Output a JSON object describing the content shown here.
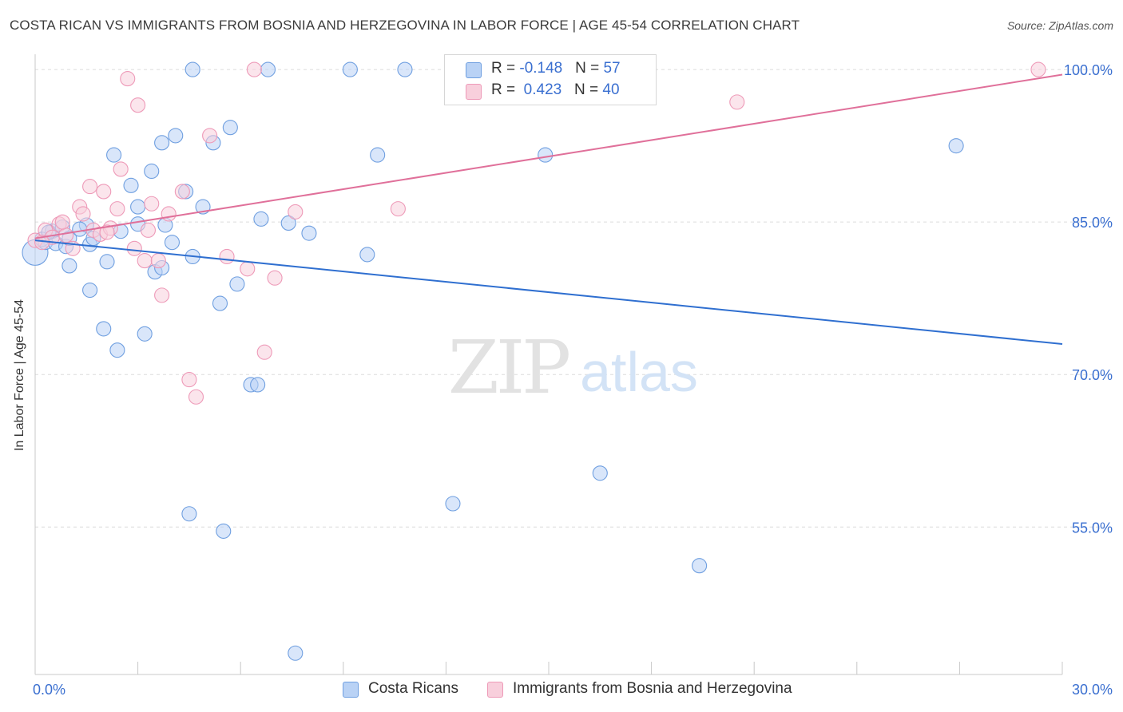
{
  "title": "COSTA RICAN VS IMMIGRANTS FROM BOSNIA AND HERZEGOVINA IN LABOR FORCE | AGE 45-54 CORRELATION CHART",
  "source": "Source: ZipAtlas.com",
  "watermark": {
    "zip": "ZIP",
    "atlas": "atlas"
  },
  "legend": {
    "rows": [
      {
        "r_label": "R = ",
        "r_value": "-0.148",
        "n_label": "N = ",
        "n_value": "57"
      },
      {
        "r_label": "R = ",
        "r_value": "0.423",
        "n_label": "N = ",
        "n_value": "40"
      }
    ]
  },
  "chart_data": {
    "type": "scatter",
    "title": "COSTA RICAN VS IMMIGRANTS FROM BOSNIA AND HERZEGOVINA IN LABOR FORCE | AGE 45-54 CORRELATION CHART",
    "xlabel": "",
    "ylabel": "In Labor Force | Age 45-54",
    "xlim": [
      0,
      30
    ],
    "ylim": [
      40.5,
      101.5
    ],
    "x_tick_labels": [
      {
        "value": 0,
        "label": "0.0%"
      },
      {
        "value": 30,
        "label": "30.0%"
      }
    ],
    "y_tick_labels": [
      {
        "value": 55,
        "label": "55.0%"
      },
      {
        "value": 70,
        "label": "70.0%"
      },
      {
        "value": 85,
        "label": "85.0%"
      },
      {
        "value": 100,
        "label": "100.0%"
      }
    ],
    "series": [
      {
        "name": "Costa Ricans",
        "color": "#6f9fe0",
        "fill": "#b9d2f5",
        "r": -0.148,
        "n": 57,
        "trend": {
          "x": [
            0,
            30
          ],
          "y": [
            83.2,
            73.0
          ]
        },
        "points": [
          [
            0.0,
            82.0,
            16
          ],
          [
            0.2,
            83.3,
            9
          ],
          [
            0.3,
            83.0,
            9
          ],
          [
            0.5,
            84.1,
            9
          ],
          [
            0.6,
            82.9,
            9
          ],
          [
            0.8,
            84.5,
            9
          ],
          [
            0.9,
            82.6,
            9
          ],
          [
            1.0,
            80.7,
            9
          ],
          [
            1.0,
            83.4,
            9
          ],
          [
            1.5,
            84.7,
            9
          ],
          [
            1.6,
            82.8,
            9
          ],
          [
            1.7,
            83.4,
            9
          ],
          [
            1.6,
            78.3,
            9
          ],
          [
            2.1,
            81.1,
            9
          ],
          [
            2.0,
            74.5,
            9
          ],
          [
            2.4,
            72.4,
            9
          ],
          [
            2.5,
            84.1,
            9
          ],
          [
            2.3,
            91.6,
            9
          ],
          [
            2.8,
            88.6,
            9
          ],
          [
            3.0,
            84.8,
            9
          ],
          [
            3.0,
            86.5,
            9
          ],
          [
            3.2,
            74.0,
            9
          ],
          [
            3.4,
            90.0,
            9
          ],
          [
            3.5,
            80.1,
            9
          ],
          [
            3.7,
            80.5,
            9
          ],
          [
            3.7,
            92.8,
            9
          ],
          [
            3.8,
            84.7,
            9
          ],
          [
            4.0,
            83.0,
            9
          ],
          [
            4.1,
            93.5,
            9
          ],
          [
            4.4,
            88.0,
            9
          ],
          [
            4.6,
            81.6,
            9
          ],
          [
            4.5,
            56.3,
            9
          ],
          [
            4.6,
            100.0,
            9
          ],
          [
            4.9,
            86.5,
            9
          ],
          [
            5.2,
            92.8,
            9
          ],
          [
            5.4,
            77.0,
            9
          ],
          [
            5.5,
            54.6,
            9
          ],
          [
            5.7,
            94.3,
            9
          ],
          [
            5.9,
            78.9,
            9
          ],
          [
            6.3,
            69.0,
            9
          ],
          [
            6.5,
            69.0,
            9
          ],
          [
            6.6,
            85.3,
            9
          ],
          [
            6.8,
            100.0,
            9
          ],
          [
            7.4,
            84.9,
            9
          ],
          [
            7.6,
            42.6,
            9
          ],
          [
            8.0,
            83.9,
            9
          ],
          [
            9.2,
            100.0,
            9
          ],
          [
            9.7,
            81.8,
            9
          ],
          [
            10.0,
            91.6,
            9
          ],
          [
            10.8,
            100.0,
            9
          ],
          [
            12.2,
            57.3,
            9
          ],
          [
            14.9,
            91.6,
            9
          ],
          [
            16.5,
            60.3,
            9
          ],
          [
            19.4,
            51.2,
            9
          ],
          [
            26.9,
            92.5,
            9
          ],
          [
            0.4,
            84.0,
            9
          ],
          [
            1.3,
            84.3,
            9
          ]
        ]
      },
      {
        "name": "Immigrants from Bosnia and Herzegovina",
        "color": "#ee9ab8",
        "fill": "#f8cfdc",
        "r": 0.423,
        "n": 40,
        "trend": {
          "x": [
            0,
            30
          ],
          "y": [
            83.4,
            99.5
          ]
        },
        "points": [
          [
            0.0,
            83.2,
            9
          ],
          [
            0.3,
            84.2,
            9
          ],
          [
            0.5,
            83.5,
            9
          ],
          [
            0.7,
            84.8,
            9
          ],
          [
            0.9,
            83.7,
            9
          ],
          [
            1.1,
            82.4,
            9
          ],
          [
            1.3,
            86.5,
            9
          ],
          [
            1.4,
            85.8,
            9
          ],
          [
            1.6,
            88.5,
            9
          ],
          [
            1.7,
            84.2,
            9
          ],
          [
            1.9,
            83.8,
            9
          ],
          [
            2.0,
            88.0,
            9
          ],
          [
            2.2,
            84.4,
            9
          ],
          [
            2.4,
            86.3,
            9
          ],
          [
            2.5,
            90.2,
            9
          ],
          [
            2.7,
            99.1,
            9
          ],
          [
            2.9,
            82.4,
            9
          ],
          [
            3.0,
            96.5,
            9
          ],
          [
            3.2,
            81.2,
            9
          ],
          [
            3.3,
            84.2,
            9
          ],
          [
            3.4,
            86.8,
            9
          ],
          [
            3.6,
            81.2,
            9
          ],
          [
            3.7,
            77.8,
            9
          ],
          [
            3.9,
            85.8,
            9
          ],
          [
            4.3,
            88.0,
            9
          ],
          [
            4.5,
            69.5,
            9
          ],
          [
            4.7,
            67.8,
            9
          ],
          [
            5.1,
            93.5,
            9
          ],
          [
            5.6,
            81.6,
            9
          ],
          [
            6.2,
            80.4,
            9
          ],
          [
            6.4,
            100.0,
            9
          ],
          [
            6.7,
            72.2,
            9
          ],
          [
            7.0,
            79.5,
            9
          ],
          [
            7.6,
            86.0,
            9
          ],
          [
            10.6,
            86.3,
            9
          ],
          [
            20.5,
            96.8,
            9
          ],
          [
            29.3,
            100.0,
            9
          ],
          [
            0.2,
            83.0,
            9
          ],
          [
            2.1,
            84.0,
            9
          ],
          [
            0.8,
            85.0,
            9
          ]
        ]
      }
    ]
  }
}
